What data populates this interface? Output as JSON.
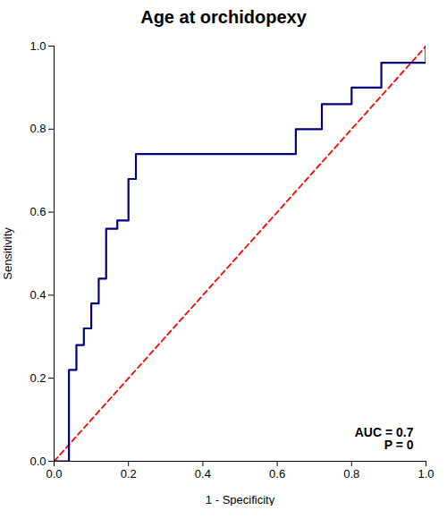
{
  "chart_data": {
    "type": "line",
    "title": "Age at orchidopexy",
    "xlabel": "1 - Specificity",
    "ylabel": "Sensitivity",
    "series": [
      {
        "x": [
          0.0,
          1.0
        ],
        "values": [
          0.0,
          1.0
        ],
        "color": "#FF0000",
        "line_style": "dashed"
      },
      {
        "x": [
          0.0,
          0.0,
          0.04,
          0.04,
          0.06,
          0.06,
          0.08,
          0.08,
          0.1,
          0.1,
          0.12,
          0.12,
          0.14,
          0.14,
          0.17,
          0.17,
          0.2,
          0.2,
          0.22,
          0.22,
          0.6,
          0.6,
          0.65,
          0.65,
          0.72,
          0.72,
          0.8,
          0.8,
          0.88,
          0.88,
          1.0,
          1.0
        ],
        "values": [
          0.0,
          0.0,
          0.0,
          0.22,
          0.22,
          0.28,
          0.28,
          0.32,
          0.32,
          0.38,
          0.38,
          0.44,
          0.44,
          0.56,
          0.56,
          0.58,
          0.58,
          0.68,
          0.68,
          0.74,
          0.74,
          0.74,
          0.74,
          0.8,
          0.8,
          0.86,
          0.86,
          0.9,
          0.9,
          0.96,
          0.96,
          1.0
        ],
        "color": "#000080",
        "line_style": "solid"
      }
    ],
    "annotation": "AUC = 0.7\nP = 0",
    "xlim": [
      0.0,
      1.0
    ],
    "ylim": [
      0.0,
      1.0
    ],
    "xticks": [
      {
        "value": 0.0,
        "label": "0.0"
      },
      0.2,
      0.4,
      0.6,
      0.8,
      {
        "value": 1.0,
        "label": "1.0"
      }
    ],
    "yticks": [
      {
        "value": 0.0,
        "label": "0.0"
      },
      0.2,
      0.4,
      0.6,
      0.8,
      {
        "value": 1.0,
        "label": "1.0"
      }
    ],
    "grid": false
  }
}
